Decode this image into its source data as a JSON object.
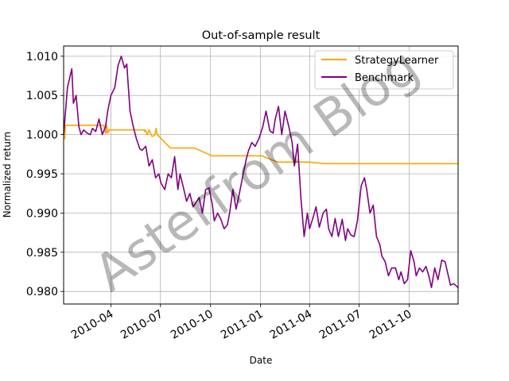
{
  "chart_data": {
    "type": "line",
    "title": "Out-of-sample result",
    "xlabel": "Date",
    "ylabel": "Normalized return",
    "x_range": [
      "2010-01-04",
      "2011-12-30"
    ],
    "ylim": [
      0.9784,
      1.0113
    ],
    "grid": true,
    "legend_position": "top-right",
    "x_ticks": [
      "2010-04",
      "2010-07",
      "2010-10",
      "2011-01",
      "2011-04",
      "2011-07",
      "2011-10"
    ],
    "y_ticks": [
      "1.010",
      "1.005",
      "1.000",
      "0.995",
      "0.990",
      "0.985",
      "0.980"
    ],
    "watermark": "Asterfrom Blog",
    "series": [
      {
        "name": "StrategyLearner",
        "color": "#ffa500",
        "x": [
          "2010-01-04",
          "2010-01-06",
          "2010-01-07",
          "2010-01-08",
          "2010-01-11",
          "2010-02-15",
          "2010-03-19",
          "2010-03-22",
          "2010-03-23",
          "2010-03-24",
          "2010-03-26",
          "2010-03-29",
          "2010-04-01",
          "2010-05-03",
          "2010-06-01",
          "2010-06-02",
          "2010-06-03",
          "2010-06-07",
          "2010-06-10",
          "2010-06-14",
          "2010-06-15",
          "2010-06-18",
          "2010-06-21",
          "2010-06-23",
          "2010-06-25",
          "2010-07-19",
          "2010-07-20",
          "2010-07-26",
          "2010-09-01",
          "2010-10-04",
          "2010-10-05",
          "2010-10-11",
          "2010-10-12",
          "2010-10-14",
          "2010-10-19",
          "2010-10-25",
          "2010-11-29",
          "2011-01-03",
          "2011-02-01",
          "2011-03-01",
          "2011-03-17",
          "2011-03-18",
          "2011-03-21",
          "2011-03-31",
          "2011-04-29",
          "2011-05-02",
          "2011-06-01",
          "2011-06-30",
          "2011-07-01",
          "2011-07-29",
          "2011-08-01",
          "2011-08-30",
          "2011-08-31",
          "2011-09-14",
          "2011-09-15",
          "2011-10-03",
          "2011-10-04",
          "2011-11-01",
          "2011-12-01",
          "2011-12-05",
          "2011-12-06",
          "2011-12-30"
        ],
        "y": [
          0.9995,
          0.9995,
          1.0012,
          1.0012,
          1.0012,
          1.0012,
          1.0012,
          1.0002,
          1.0002,
          1.0012,
          1.0002,
          1.0006,
          1.0006,
          1.0006,
          1.0006,
          1.0004,
          1.0006,
          1.0,
          1.0006,
          1.0,
          0.9998,
          0.9998,
          1.0,
          1.0008,
          1.0,
          0.9983,
          0.9983,
          0.9983,
          0.9983,
          0.9973,
          0.9973,
          0.9973,
          0.9973,
          0.9973,
          0.9973,
          0.9973,
          0.9973,
          0.9973,
          0.9965,
          0.9965,
          0.9965,
          0.9965,
          0.9965,
          0.9965,
          0.9963,
          0.9963,
          0.9963,
          0.9963,
          0.9963,
          0.9963,
          0.9963,
          0.9963,
          0.9963,
          0.9963,
          0.9963,
          0.9963,
          0.9963,
          0.9963,
          0.9963,
          0.9963,
          0.9963,
          0.9963
        ]
      },
      {
        "name": "Benchmark",
        "color": "#800080",
        "x": [
          "2010-01-04",
          "2010-01-11",
          "2010-01-19",
          "2010-01-22",
          "2010-01-27",
          "2010-02-01",
          "2010-02-05",
          "2010-02-10",
          "2010-02-16",
          "2010-02-22",
          "2010-02-26",
          "2010-03-04",
          "2010-03-10",
          "2010-03-16",
          "2010-03-22",
          "2010-03-26",
          "2010-04-01",
          "2010-04-08",
          "2010-04-14",
          "2010-04-20",
          "2010-04-26",
          "2010-04-30",
          "2010-05-06",
          "2010-05-12",
          "2010-05-18",
          "2010-05-24",
          "2010-05-28",
          "2010-06-04",
          "2010-06-10",
          "2010-06-16",
          "2010-06-22",
          "2010-06-28",
          "2010-07-02",
          "2010-07-09",
          "2010-07-15",
          "2010-07-21",
          "2010-07-27",
          "2010-08-02",
          "2010-08-06",
          "2010-08-12",
          "2010-08-18",
          "2010-08-24",
          "2010-08-30",
          "2010-09-03",
          "2010-09-10",
          "2010-09-16",
          "2010-09-22",
          "2010-09-28",
          "2010-10-04",
          "2010-10-08",
          "2010-10-14",
          "2010-10-20",
          "2010-10-26",
          "2010-11-01",
          "2010-11-05",
          "2010-11-11",
          "2010-11-17",
          "2010-11-23",
          "2010-11-30",
          "2010-12-06",
          "2010-12-10",
          "2010-12-16",
          "2010-12-22",
          "2010-12-29",
          "2011-01-05",
          "2011-01-11",
          "2011-01-18",
          "2011-01-24",
          "2011-01-28",
          "2011-02-03",
          "2011-02-09",
          "2011-02-15",
          "2011-02-22",
          "2011-02-28",
          "2011-03-04",
          "2011-03-10",
          "2011-03-16",
          "2011-03-22",
          "2011-03-28",
          "2011-04-01",
          "2011-04-07",
          "2011-04-13",
          "2011-04-19",
          "2011-04-26",
          "2011-05-02",
          "2011-05-06",
          "2011-05-12",
          "2011-05-18",
          "2011-05-24",
          "2011-05-31",
          "2011-06-06",
          "2011-06-10",
          "2011-06-16",
          "2011-06-22",
          "2011-06-28",
          "2011-07-05",
          "2011-07-11",
          "2011-07-15",
          "2011-07-21",
          "2011-07-27",
          "2011-08-02",
          "2011-08-08",
          "2011-08-12",
          "2011-08-18",
          "2011-08-24",
          "2011-08-30",
          "2011-09-06",
          "2011-09-12",
          "2011-09-16",
          "2011-09-22",
          "2011-09-28",
          "2011-10-04",
          "2011-10-10",
          "2011-10-14",
          "2011-10-20",
          "2011-10-26",
          "2011-11-01",
          "2011-11-07",
          "2011-11-11",
          "2011-11-17",
          "2011-11-23",
          "2011-11-30",
          "2011-12-06",
          "2011-12-12",
          "2011-12-16",
          "2011-12-22",
          "2011-12-30"
        ],
        "y": [
          1.0,
          1.006,
          1.0084,
          1.004,
          1.005,
          1.001,
          1.0,
          1.0006,
          1.0002,
          1.0,
          1.0008,
          1.0004,
          1.002,
          1.0,
          1.001,
          1.003,
          1.005,
          1.006,
          1.0088,
          1.01,
          1.0085,
          1.009,
          1.003,
          1.001,
          0.9994,
          0.9982,
          0.998,
          0.9985,
          0.996,
          0.9968,
          0.9945,
          0.995,
          0.9938,
          0.993,
          0.995,
          0.9945,
          0.9972,
          0.993,
          0.995,
          0.9933,
          0.9915,
          0.9925,
          0.9908,
          0.9912,
          0.992,
          0.99,
          0.993,
          0.9932,
          0.9912,
          0.989,
          0.99,
          0.9892,
          0.988,
          0.9885,
          0.99,
          0.993,
          0.9905,
          0.9925,
          0.995,
          0.997,
          0.998,
          0.999,
          0.9985,
          0.9995,
          1.001,
          1.003,
          1.0005,
          1.0002,
          1.002,
          1.0036,
          1.0,
          1.003,
          1.001,
          0.999,
          0.996,
          0.9988,
          0.992,
          0.987,
          0.99,
          0.988,
          0.9893,
          0.9908,
          0.9882,
          0.99,
          0.9905,
          0.988,
          0.987,
          0.9893,
          0.987,
          0.9892,
          0.9865,
          0.988,
          0.9872,
          0.987,
          0.989,
          0.9935,
          0.9945,
          0.993,
          0.99,
          0.991,
          0.987,
          0.986,
          0.9845,
          0.9838,
          0.982,
          0.983,
          0.983,
          0.9815,
          0.9825,
          0.981,
          0.9815,
          0.9852,
          0.9838,
          0.982,
          0.983,
          0.9825,
          0.9832,
          0.9818,
          0.9805,
          0.983,
          0.9815,
          0.984,
          0.9838,
          0.982,
          0.9808,
          0.981,
          0.9805
        ]
      }
    ]
  }
}
